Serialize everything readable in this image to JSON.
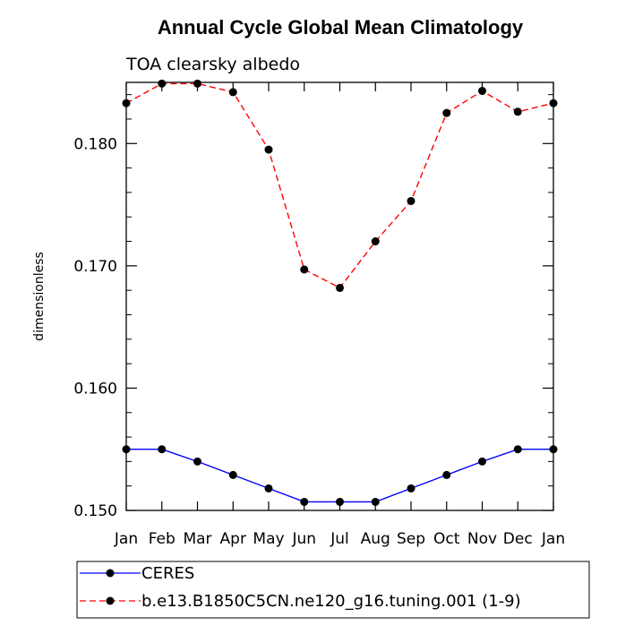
{
  "chart_data": {
    "type": "line",
    "title": "Annual Cycle Global Mean Climatology",
    "subtitle": "TOA clearsky albedo",
    "xlabel": "",
    "ylabel": "dimensionless",
    "categories": [
      "Jan",
      "Feb",
      "Mar",
      "Apr",
      "May",
      "Jun",
      "Jul",
      "Aug",
      "Sep",
      "Oct",
      "Nov",
      "Dec",
      "Jan"
    ],
    "ylim": [
      0.15,
      0.185
    ],
    "yticks": [
      0.15,
      0.16,
      0.17,
      0.18
    ],
    "ytick_labels": [
      "0.150",
      "0.160",
      "0.170",
      "0.180"
    ],
    "grid": false,
    "legend_position": "bottom",
    "series": [
      {
        "name": "CERES",
        "color": "#0000ff",
        "line_style": "solid",
        "marker": "filled-circle",
        "values": [
          0.155,
          0.155,
          0.154,
          0.1529,
          0.1518,
          0.1507,
          0.1507,
          0.1507,
          0.1518,
          0.1529,
          0.154,
          0.155,
          0.155
        ]
      },
      {
        "name": "b.e13.B1850C5CN.ne120_g16.tuning.001 (1-9)",
        "color": "#ff0000",
        "line_style": "dashed",
        "marker": "filled-circle",
        "values": [
          0.1833,
          0.1849,
          0.1849,
          0.1842,
          0.1795,
          0.1697,
          0.1682,
          0.172,
          0.1753,
          0.1825,
          0.1843,
          0.1826,
          0.1833
        ]
      }
    ]
  }
}
